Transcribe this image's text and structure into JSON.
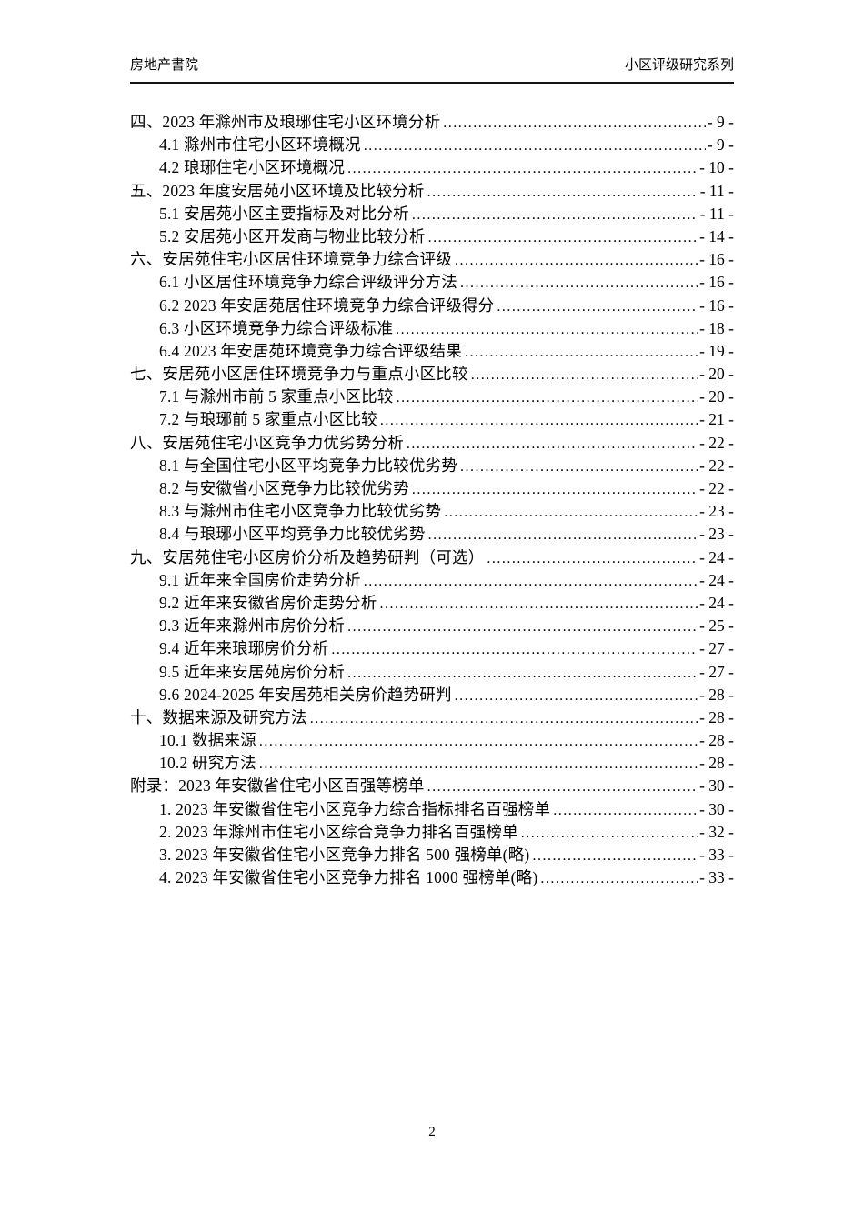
{
  "header": {
    "left": "房地产書院",
    "right": "小区评级研究系列"
  },
  "toc": {
    "entries": [
      {
        "level": 1,
        "title": "四、2023 年滁州市及琅琊住宅小区环境分析",
        "page": "- 9 -"
      },
      {
        "level": 2,
        "title": "4.1 滁州市住宅小区环境概况",
        "page": "- 9 -"
      },
      {
        "level": 2,
        "title": "4.2 琅琊住宅小区环境概况",
        "page": "- 10 -"
      },
      {
        "level": 1,
        "title": "五、2023 年度安居苑小区环境及比较分析",
        "page": "- 11 -"
      },
      {
        "level": 2,
        "title": "5.1 安居苑小区主要指标及对比分析",
        "page": "- 11 -"
      },
      {
        "level": 2,
        "title": "5.2 安居苑小区开发商与物业比较分析",
        "page": "- 14 -"
      },
      {
        "level": 1,
        "title": "六、安居苑住宅小区居住环境竞争力综合评级",
        "page": "- 16 -"
      },
      {
        "level": 2,
        "title": "6.1 小区居住环境竞争力综合评级评分方法",
        "page": "- 16 -"
      },
      {
        "level": 2,
        "title": "6.2 2023 年安居苑居住环境竞争力综合评级得分",
        "page": "- 16 -"
      },
      {
        "level": 2,
        "title": "6.3 小区环境竞争力综合评级标准",
        "page": "- 18 -"
      },
      {
        "level": 2,
        "title": "6.4 2023 年安居苑环境竞争力综合评级结果",
        "page": "- 19 -"
      },
      {
        "level": 1,
        "title": "七、安居苑小区居住环境竞争力与重点小区比较",
        "page": "- 20 -"
      },
      {
        "level": 2,
        "title": "7.1 与滁州市前 5 家重点小区比较",
        "page": "- 20 -"
      },
      {
        "level": 2,
        "title": "7.2 与琅琊前 5 家重点小区比较",
        "page": "- 21 -"
      },
      {
        "level": 1,
        "title": "八、安居苑住宅小区竞争力优劣势分析",
        "page": "- 22 -"
      },
      {
        "level": 2,
        "title": "8.1 与全国住宅小区平均竞争力比较优劣势",
        "page": "- 22 -"
      },
      {
        "level": 2,
        "title": "8.2 与安徽省小区竞争力比较优劣势",
        "page": "- 22 -"
      },
      {
        "level": 2,
        "title": "8.3 与滁州市住宅小区竞争力比较优劣势",
        "page": "- 23 -"
      },
      {
        "level": 2,
        "title": "8.4 与琅琊小区平均竞争力比较优劣势",
        "page": "- 23 -"
      },
      {
        "level": 1,
        "title": "九、安居苑住宅小区房价分析及趋势研判（可选）",
        "page": "- 24 -"
      },
      {
        "level": 2,
        "title": "9.1 近年来全国房价走势分析",
        "page": "- 24 -"
      },
      {
        "level": 2,
        "title": "9.2 近年来安徽省房价走势分析",
        "page": "- 24 -"
      },
      {
        "level": 2,
        "title": "9.3 近年来滁州市房价分析",
        "page": "- 25 -"
      },
      {
        "level": 2,
        "title": "9.4 近年来琅琊房价分析",
        "page": "- 27 -"
      },
      {
        "level": 2,
        "title": "9.5 近年来安居苑房价分析",
        "page": "- 27 -"
      },
      {
        "level": 2,
        "title": "9.6 2024-2025 年安居苑相关房价趋势研判",
        "page": "- 28 -"
      },
      {
        "level": 1,
        "title": "十、数据来源及研究方法",
        "page": "- 28 -"
      },
      {
        "level": 2,
        "title": "10.1 数据来源",
        "page": "- 28 -"
      },
      {
        "level": 2,
        "title": "10.2 研究方法",
        "page": "- 28 -"
      },
      {
        "level": 1,
        "title": "附录：2023 年安徽省住宅小区百强等榜单",
        "page": "- 30 -"
      },
      {
        "level": 2,
        "title": "1. 2023 年安徽省住宅小区竞争力综合指标排名百强榜单",
        "page": "- 30 -"
      },
      {
        "level": 2,
        "title": "2. 2023 年滁州市住宅小区综合竞争力排名百强榜单",
        "page": "- 32 -"
      },
      {
        "level": 2,
        "title": "3. 2023 年安徽省住宅小区竞争力排名 500 强榜单(略)",
        "page": "- 33 -"
      },
      {
        "level": 2,
        "title": "4. 2023 年安徽省住宅小区竞争力排名 1000 强榜单(略)",
        "page": "- 33 -"
      }
    ]
  },
  "footer": {
    "page_number": "2"
  }
}
